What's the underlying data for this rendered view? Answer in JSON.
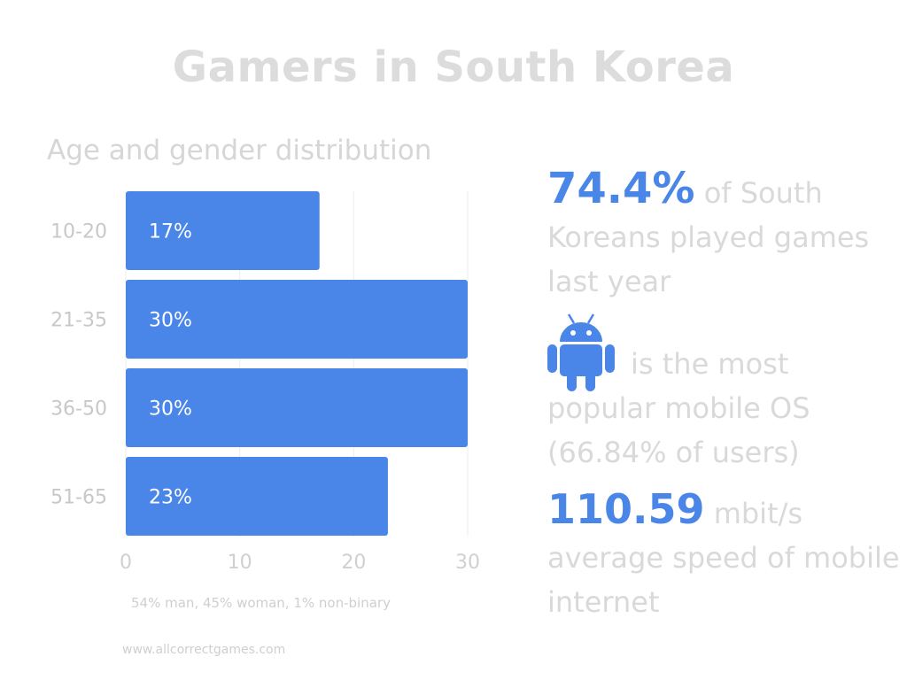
{
  "title": "Gamers in South Korea",
  "subtitle": "Age and gender distribution",
  "chart_data": {
    "type": "bar",
    "orientation": "horizontal",
    "categories": [
      "10-20",
      "21-35",
      "36-50",
      "51-65"
    ],
    "values": [
      17,
      30,
      30,
      23
    ],
    "data_labels": [
      "17%",
      "30%",
      "30%",
      "23%"
    ],
    "xlim": [
      0,
      30
    ],
    "xticks": [
      0,
      10,
      20,
      30
    ],
    "grid": true,
    "bar_color": "#4a86e8"
  },
  "note": "54% man, 45% woman, 1% non-binary",
  "footer": "www.allcorrectgames.com",
  "stats": {
    "stat1_value": "74.4%",
    "stat1_text": " of South Koreans played games last year",
    "stat2_icon": "android-icon",
    "stat2_text": "is the most popular mobile OS (66.84% of users)",
    "stat3_value": "110.59",
    "stat3_text": " mbit/s average speed of mobile internet"
  },
  "colors": {
    "accent": "#4a86e8",
    "muted_text": "#d9d9d9"
  }
}
